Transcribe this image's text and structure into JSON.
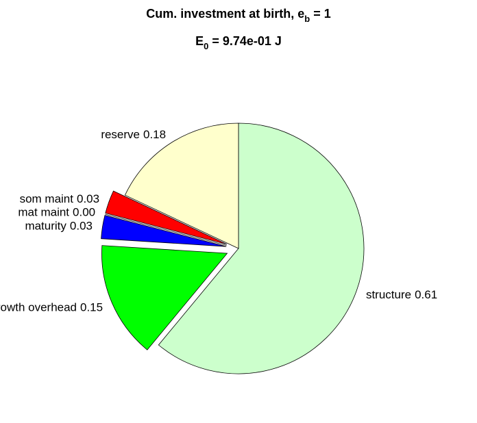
{
  "chart_data": {
    "type": "pie",
    "title": [
      "Cum. investment at birth, e",
      "b",
      " = 1"
    ],
    "subtitle": [
      "E",
      "0",
      " = 9.74e-01 J"
    ],
    "categories": [
      "structure",
      "growth overhead",
      "maturity",
      "mat maint",
      "som maint",
      "reserve"
    ],
    "values": [
      0.61,
      0.15,
      0.03,
      0,
      0.03,
      0.18
    ],
    "value_labels": [
      "0.61",
      "0.15",
      "0.03",
      "0.00",
      "0.03",
      "0.18"
    ],
    "colors": [
      "#ccffcc",
      "#00ff00",
      "#0000ff",
      "#808080",
      "#ff0000",
      "#ffffcc"
    ],
    "exploded": [
      false,
      true,
      true,
      true,
      true,
      false
    ],
    "direction": "clockwise"
  }
}
